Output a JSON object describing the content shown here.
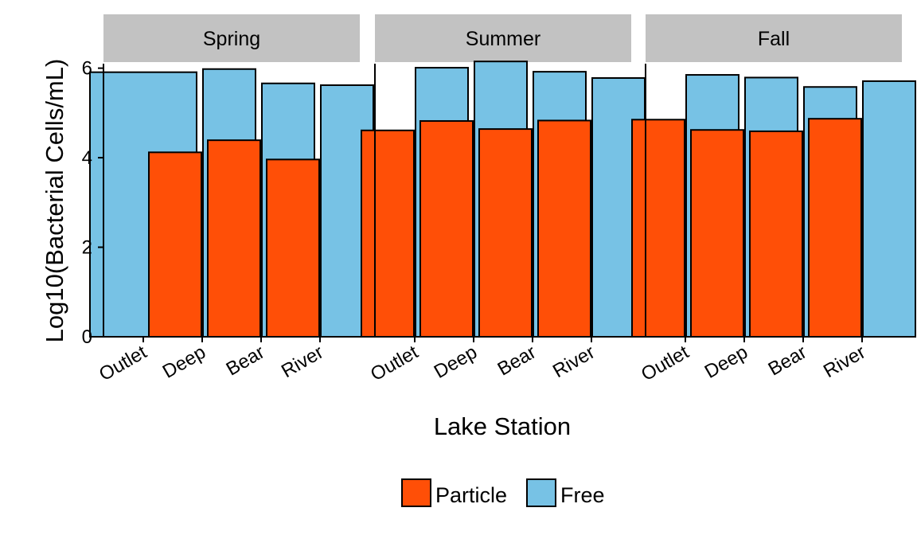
{
  "chart_data": {
    "type": "bar",
    "title": "",
    "xlabel": "Lake Station",
    "ylabel": "Log10(Bacterial Cells/mL)",
    "ylim": [
      0,
      6.1
    ],
    "yticks": [
      0,
      2,
      4,
      6
    ],
    "categories": [
      "Outlet",
      "Deep",
      "Bear",
      "River"
    ],
    "facets": [
      "Spring",
      "Summer",
      "Fall"
    ],
    "legend_position": "bottom",
    "grid": false,
    "series": [
      {
        "name": "Particle",
        "color": "#FF4F07",
        "values": {
          "Spring": [
            null,
            4.12,
            4.39,
            3.96
          ],
          "Summer": [
            4.61,
            4.82,
            4.64,
            4.83
          ],
          "Fall": [
            4.85,
            4.62,
            4.59,
            4.87
          ]
        }
      },
      {
        "name": "Free",
        "color": "#77C2E5",
        "values": {
          "Spring": [
            5.91,
            5.98,
            5.66,
            5.62
          ],
          "Summer": [
            6.01,
            6.15,
            5.92,
            5.78
          ],
          "Fall": [
            5.85,
            5.79,
            5.58,
            5.71
          ]
        }
      }
    ]
  }
}
